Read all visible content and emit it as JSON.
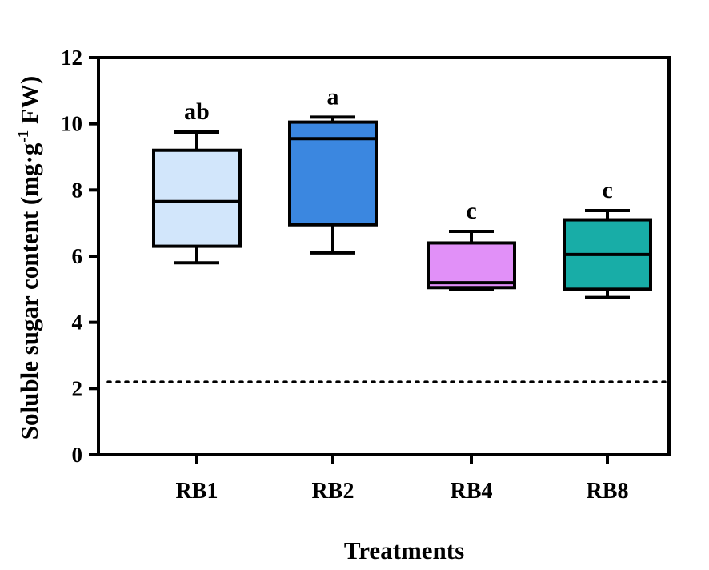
{
  "chart_data": {
    "type": "box",
    "title": "",
    "xlabel": "Treatments",
    "ylabel": {
      "main": "Soluble sugar content (mg·g",
      "superscript": "-1",
      "suffix": " FW)"
    },
    "ylim": [
      0,
      12
    ],
    "yticks": [
      "0",
      "2",
      "4",
      "6",
      "8",
      "10",
      "12"
    ],
    "grid": false,
    "legend": "none",
    "reference_line": {
      "y": 2.2,
      "style": "dotted"
    },
    "categories": [
      "RB1",
      "RB2",
      "RB4",
      "RB8"
    ],
    "boxes": [
      {
        "name": "RB1",
        "min": 5.8,
        "q1": 6.3,
        "median": 7.65,
        "q3": 9.2,
        "max": 9.75,
        "color": "#d2e6fb",
        "letter": "ab"
      },
      {
        "name": "RB2",
        "min": 6.1,
        "q1": 6.95,
        "median": 9.55,
        "q3": 10.05,
        "max": 10.2,
        "color": "#3b87e0",
        "letter": "a"
      },
      {
        "name": "RB4",
        "min": 5.0,
        "q1": 5.05,
        "median": 5.2,
        "q3": 6.4,
        "max": 6.75,
        "color": "#e190f8",
        "letter": "c"
      },
      {
        "name": "RB8",
        "min": 4.75,
        "q1": 5.0,
        "median": 6.05,
        "q3": 7.1,
        "max": 7.38,
        "color": "#18ada7",
        "letter": "c"
      }
    ]
  }
}
